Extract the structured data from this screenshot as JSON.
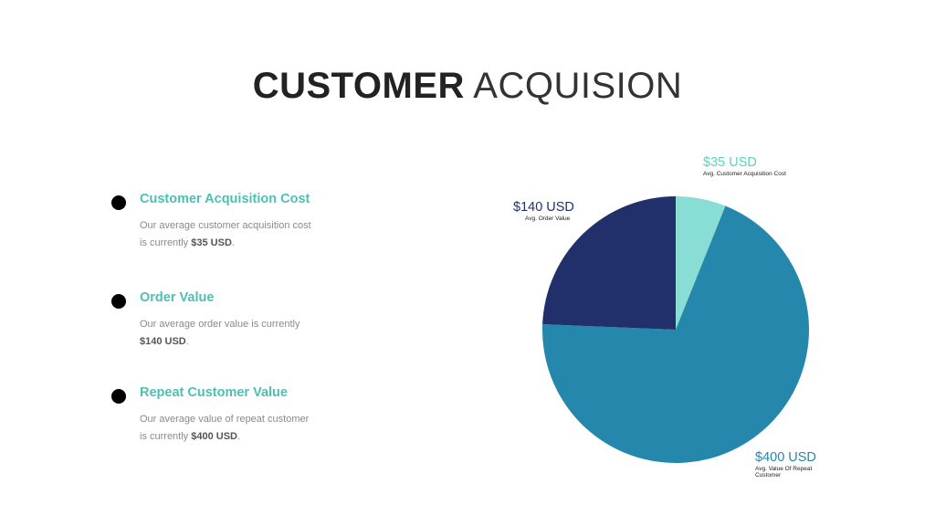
{
  "title": {
    "bold": "CUSTOMER",
    "light": "ACQUISION"
  },
  "items": [
    {
      "heading": "Customer Acquisition Cost",
      "line1": "Our average customer acquisition cost",
      "line2_pre": "is currently ",
      "value": "$35 USD",
      "line2_post": "."
    },
    {
      "heading": "Order Value",
      "line1": "Our average order value is currently",
      "line2_pre": "",
      "value": "$140 USD",
      "line2_post": "."
    },
    {
      "heading": "Repeat Customer Value",
      "line1": "Our average value of repeat customer",
      "line2_pre": "is currently ",
      "value": "$400 USD",
      "line2_post": "."
    }
  ],
  "colors": {
    "heading": "#4dbfb3",
    "bullet": "#000000"
  },
  "chart_data": {
    "type": "pie",
    "title": "",
    "slices": [
      {
        "label": "Avg. Customer Acquisition Cost",
        "value": 35,
        "value_label": "$35 USD",
        "color": "#88ddd4"
      },
      {
        "label": "Avg. Value Of Repeat Customer",
        "value": 400,
        "value_label": "$400 USD",
        "color": "#2487ab"
      },
      {
        "label": "Avg. Order Value",
        "value": 140,
        "value_label": "$140 USD",
        "color": "#21306b"
      }
    ],
    "start_angle": "12 o'clock",
    "direction": "clockwise",
    "legend": "none"
  }
}
